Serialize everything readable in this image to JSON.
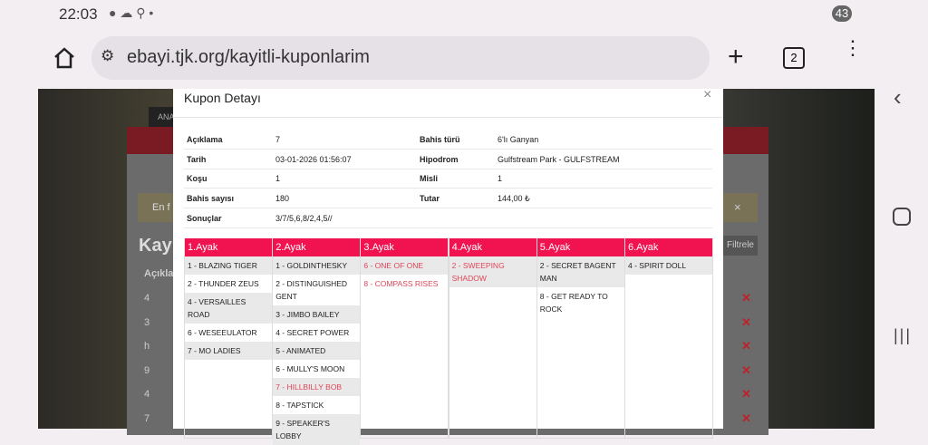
{
  "status_bar": {
    "time": "22:03",
    "battery": "43"
  },
  "browser": {
    "url": "ebayi.tjk.org/kayitli-kuponlarim",
    "tab_count": "2"
  },
  "background": {
    "nav_tab": "ANA",
    "notice": "En f",
    "heading": "Kayı",
    "column_header": "Açıkla",
    "filter_button": "Filtrele",
    "rows": [
      "4",
      "3",
      "h",
      "9",
      "4",
      "7"
    ]
  },
  "modal": {
    "title": "Kupon Detayı",
    "close": "×",
    "details": [
      [
        {
          "label": "Açıklama",
          "value": "7"
        },
        {
          "label": "Bahis türü",
          "value": "6'lı Ganyan"
        }
      ],
      [
        {
          "label": "Tarih",
          "value": "03-01-2026 01:56:07"
        },
        {
          "label": "Hipodrom",
          "value": "Gulfstream Park - GULFSTREAM"
        }
      ],
      [
        {
          "label": "Koşu",
          "value": "1"
        },
        {
          "label": "Misli",
          "value": "1"
        }
      ],
      [
        {
          "label": "Bahis sayısı",
          "value": "180"
        },
        {
          "label": "Tutar",
          "value": "144,00 ₺"
        }
      ],
      [
        {
          "label": "Sonuçlar",
          "value": "3/7/5,6,8/2,4,5//"
        }
      ]
    ],
    "legs": [
      {
        "title": "1.Ayak",
        "horses": [
          {
            "name": "1 - BLAZING TIGER",
            "highlighted": false
          },
          {
            "name": "2 - THUNDER ZEUS",
            "highlighted": false
          },
          {
            "name": "4 - VERSAILLES ROAD",
            "highlighted": false
          },
          {
            "name": "6 - WESEEULATOR",
            "highlighted": false
          },
          {
            "name": "7 - MO LADIES",
            "highlighted": false
          }
        ]
      },
      {
        "title": "2.Ayak",
        "horses": [
          {
            "name": "1 - GOLDINTHESKY",
            "highlighted": false
          },
          {
            "name": "2 - DISTINGUISHED GENT",
            "highlighted": false
          },
          {
            "name": "3 - JIMBO BAILEY",
            "highlighted": false
          },
          {
            "name": "4 - SECRET POWER",
            "highlighted": false
          },
          {
            "name": "5 - ANIMATED",
            "highlighted": false
          },
          {
            "name": "6 - MULLY'S MOON",
            "highlighted": false
          },
          {
            "name": "7 - HILLBILLY BOB",
            "highlighted": true
          },
          {
            "name": "8 - TAPSTICK",
            "highlighted": false
          },
          {
            "name": "9 - SPEAKER'S LOBBY",
            "highlighted": false
          }
        ]
      },
      {
        "title": "3.Ayak",
        "horses": [
          {
            "name": "6 - ONE OF ONE",
            "highlighted": true
          },
          {
            "name": "8 - COMPASS RISES",
            "highlighted": true
          }
        ]
      },
      {
        "title": "4.Ayak",
        "horses": [
          {
            "name": "2 - SWEEPING SHADOW",
            "highlighted": true
          }
        ]
      },
      {
        "title": "5.Ayak",
        "horses": [
          {
            "name": "2 - SECRET BAGENT MAN",
            "highlighted": false
          },
          {
            "name": "8 - GET READY TO ROCK",
            "highlighted": false
          }
        ]
      },
      {
        "title": "6.Ayak",
        "horses": [
          {
            "name": "4 - SPIRIT DOLL",
            "highlighted": false
          }
        ]
      }
    ]
  }
}
